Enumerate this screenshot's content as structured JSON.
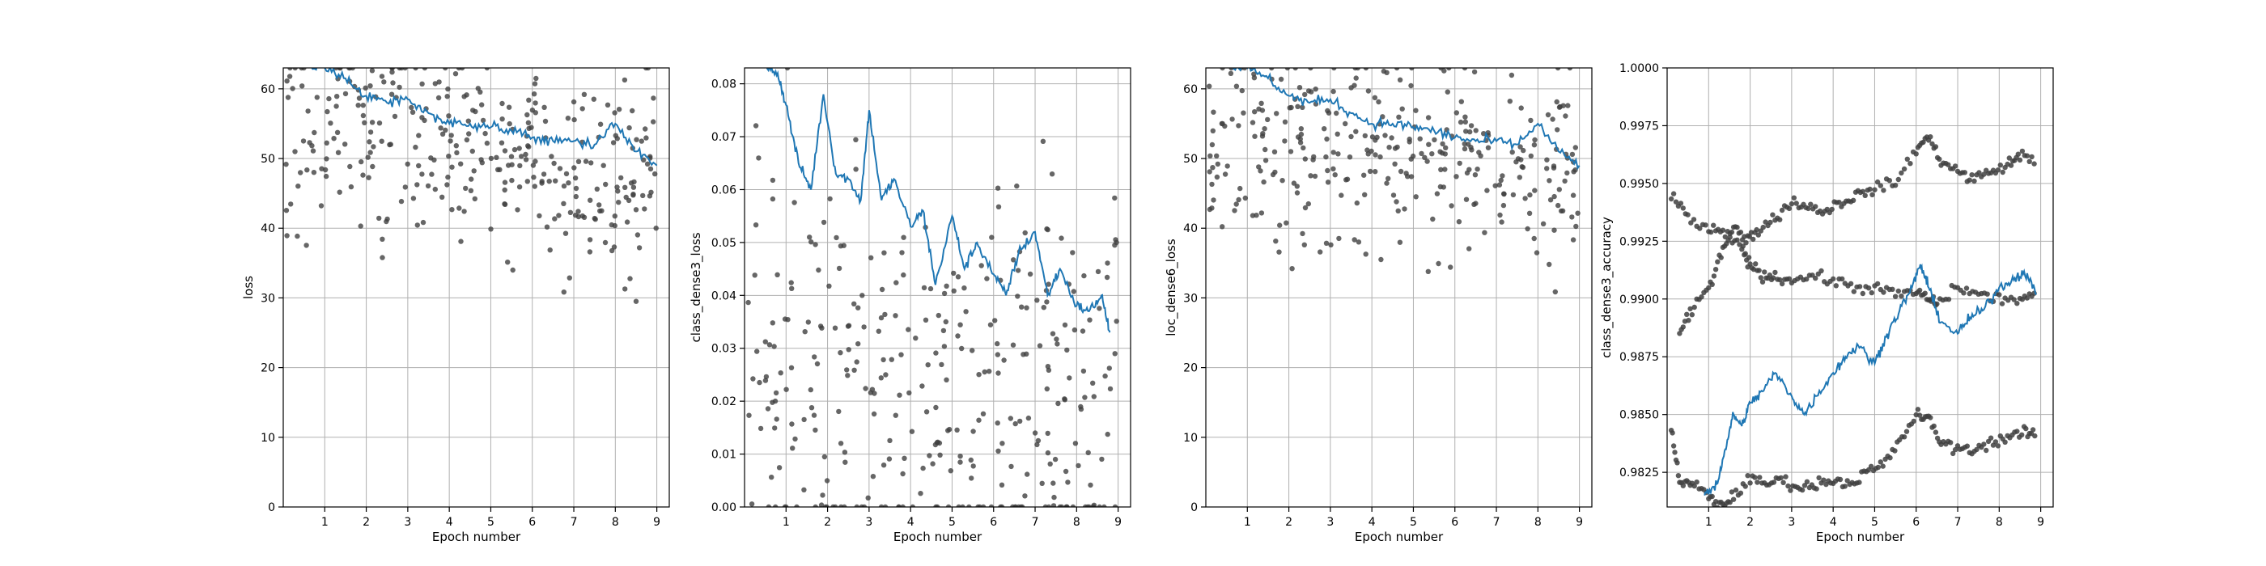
{
  "figure": {
    "background": "#ffffff",
    "line_color": "#1f77b4",
    "point_color": "#404040",
    "grid_color": "#b0b0b0"
  },
  "chart_data": [
    {
      "type": "scatter",
      "title": "",
      "xlabel": "Epoch number",
      "ylabel": "loss",
      "xlim": [
        0,
        9.3
      ],
      "ylim": [
        0,
        63
      ],
      "xticks": [
        1,
        2,
        3,
        4,
        5,
        6,
        7,
        8,
        9
      ],
      "yticks": [
        0,
        10,
        20,
        30,
        40,
        50,
        60
      ],
      "grid": true,
      "points": {
        "x_range": [
          0.05,
          9.0
        ],
        "n": 330,
        "start": 55,
        "end": 48,
        "noise": 7.5,
        "min": 29.5,
        "max": 63
      },
      "smoothed": {
        "x": [
          0.5,
          1.0,
          1.5,
          2.0,
          2.5,
          3.0,
          3.5,
          4.0,
          4.5,
          5.0,
          5.5,
          6.0,
          6.5,
          7.0,
          7.5,
          8.0,
          8.5,
          9.0
        ],
        "y": [
          63.5,
          63,
          61.5,
          59,
          58,
          58.5,
          56.5,
          55,
          55,
          54.5,
          54,
          53,
          52.5,
          52.5,
          52,
          55,
          51,
          49
        ]
      }
    },
    {
      "type": "scatter",
      "title": "",
      "xlabel": "Epoch number",
      "ylabel": "class_dense3_loss",
      "xlim": [
        0,
        9.3
      ],
      "ylim": [
        0,
        0.083
      ],
      "xticks": [
        1,
        2,
        3,
        4,
        5,
        6,
        7,
        8,
        9
      ],
      "yticks": [
        0.0,
        0.01,
        0.02,
        0.03,
        0.04,
        0.05,
        0.06,
        0.07,
        0.08
      ],
      "grid": true,
      "points": {
        "x_range": [
          0.05,
          9.0
        ],
        "n": 330,
        "start": 0.026,
        "end": 0.018,
        "noise": 0.02,
        "min": 0.0,
        "max": 0.083
      },
      "smoothed": {
        "x": [
          0.5,
          0.8,
          1.0,
          1.3,
          1.6,
          1.9,
          2.2,
          2.5,
          2.8,
          3.0,
          3.3,
          3.6,
          4.0,
          4.3,
          4.6,
          5.0,
          5.3,
          5.6,
          6.0,
          6.3,
          6.6,
          7.0,
          7.3,
          7.6,
          8.0,
          8.3,
          8.6,
          8.8
        ],
        "y": [
          0.083,
          0.082,
          0.076,
          0.065,
          0.06,
          0.078,
          0.063,
          0.062,
          0.058,
          0.075,
          0.058,
          0.062,
          0.053,
          0.056,
          0.042,
          0.055,
          0.045,
          0.05,
          0.044,
          0.04,
          0.048,
          0.052,
          0.04,
          0.045,
          0.038,
          0.037,
          0.04,
          0.033
        ]
      }
    },
    {
      "type": "scatter",
      "title": "",
      "xlabel": "Epoch number",
      "ylabel": "loc_dense6_loss",
      "xlim": [
        0,
        9.3
      ],
      "ylim": [
        0,
        63
      ],
      "xticks": [
        1,
        2,
        3,
        4,
        5,
        6,
        7,
        8,
        9
      ],
      "yticks": [
        0,
        10,
        20,
        30,
        40,
        50,
        60
      ],
      "grid": true,
      "points": {
        "x_range": [
          0.05,
          9.0
        ],
        "n": 330,
        "start": 55,
        "end": 48,
        "noise": 7.5,
        "min": 29.5,
        "max": 63
      },
      "smoothed": {
        "x": [
          0.5,
          1.0,
          1.5,
          2.0,
          2.5,
          3.0,
          3.5,
          4.0,
          4.5,
          5.0,
          5.5,
          6.0,
          6.5,
          7.0,
          7.5,
          8.0,
          8.5,
          9.0
        ],
        "y": [
          63.5,
          63,
          61.5,
          59,
          58,
          58.5,
          56.5,
          55,
          55,
          54.5,
          54,
          53,
          52.5,
          52.5,
          52,
          55,
          51,
          49
        ]
      }
    },
    {
      "type": "scatter",
      "title": "",
      "xlabel": "Epoch number",
      "ylabel": "class_dense3_accuracy",
      "xlim": [
        0,
        9.3
      ],
      "ylim": [
        0.981,
        1.0
      ],
      "xticks": [
        1,
        2,
        3,
        4,
        5,
        6,
        7,
        8,
        9
      ],
      "yticks": [
        0.9825,
        0.985,
        0.9875,
        0.99,
        0.9925,
        0.995,
        0.9975,
        1.0
      ],
      "grid": true,
      "point_tracks": [
        {
          "x": [
            0.1,
            0.5,
            1.0,
            1.4,
            1.8,
            2.0,
            2.3,
            2.6,
            3.0,
            3.5,
            4.0,
            4.5,
            5.0,
            5.5,
            6.0,
            6.3,
            6.5,
            7.0,
            7.5,
            8.0,
            8.5,
            8.9
          ],
          "y": [
            0.9945,
            0.9935,
            0.993,
            0.9928,
            0.9922,
            0.9915,
            0.991,
            0.991,
            0.9908,
            0.991,
            0.9908,
            0.9905,
            0.9905,
            0.9902,
            0.9903,
            0.99,
            0.9898,
            0.9905,
            0.9902,
            0.99,
            0.99,
            0.9902
          ]
        },
        {
          "x": [
            0.3,
            0.6,
            1.0,
            1.3,
            1.6,
            1.9,
            2.2,
            2.6,
            3.0,
            3.4,
            3.8,
            4.2,
            4.6,
            5.0,
            5.5,
            6.0,
            6.3,
            6.6,
            7.0,
            7.4,
            7.8,
            8.2,
            8.5,
            8.9
          ],
          "y": [
            0.9885,
            0.9895,
            0.9905,
            0.992,
            0.9932,
            0.9925,
            0.993,
            0.9935,
            0.9942,
            0.994,
            0.9938,
            0.9942,
            0.9945,
            0.9948,
            0.995,
            0.9965,
            0.997,
            0.996,
            0.9955,
            0.9952,
            0.9955,
            0.9958,
            0.9962,
            0.996
          ]
        },
        {
          "x": [
            0.1,
            0.3,
            0.6,
            1.0,
            1.3,
            1.6,
            2.0,
            2.4,
            2.8,
            3.2,
            3.6,
            4.0,
            4.4,
            4.8,
            5.2,
            5.6,
            6.0,
            6.3,
            6.6,
            7.0,
            7.4,
            7.8,
            8.2,
            8.6,
            8.9
          ],
          "y": [
            0.9845,
            0.982,
            0.982,
            0.9815,
            0.981,
            0.9815,
            0.9822,
            0.982,
            0.9822,
            0.9818,
            0.982,
            0.9822,
            0.982,
            0.9825,
            0.9828,
            0.9838,
            0.985,
            0.9848,
            0.9838,
            0.9835,
            0.9835,
            0.9838,
            0.984,
            0.9842,
            0.9842
          ]
        }
      ],
      "smoothed": {
        "x": [
          0.9,
          1.2,
          1.4,
          1.6,
          1.8,
          2.0,
          2.3,
          2.6,
          3.0,
          3.3,
          3.6,
          4.0,
          4.3,
          4.6,
          5.0,
          5.3,
          5.6,
          5.9,
          6.1,
          6.3,
          6.6,
          7.0,
          7.3,
          7.6,
          8.0,
          8.3,
          8.6,
          8.9
        ],
        "y": [
          0.9815,
          0.982,
          0.9835,
          0.985,
          0.9845,
          0.9855,
          0.986,
          0.9868,
          0.9858,
          0.985,
          0.9858,
          0.9868,
          0.9875,
          0.988,
          0.9872,
          0.9885,
          0.9895,
          0.9905,
          0.9915,
          0.9905,
          0.989,
          0.9885,
          0.9892,
          0.9895,
          0.9905,
          0.9908,
          0.9912,
          0.9902
        ]
      }
    }
  ]
}
